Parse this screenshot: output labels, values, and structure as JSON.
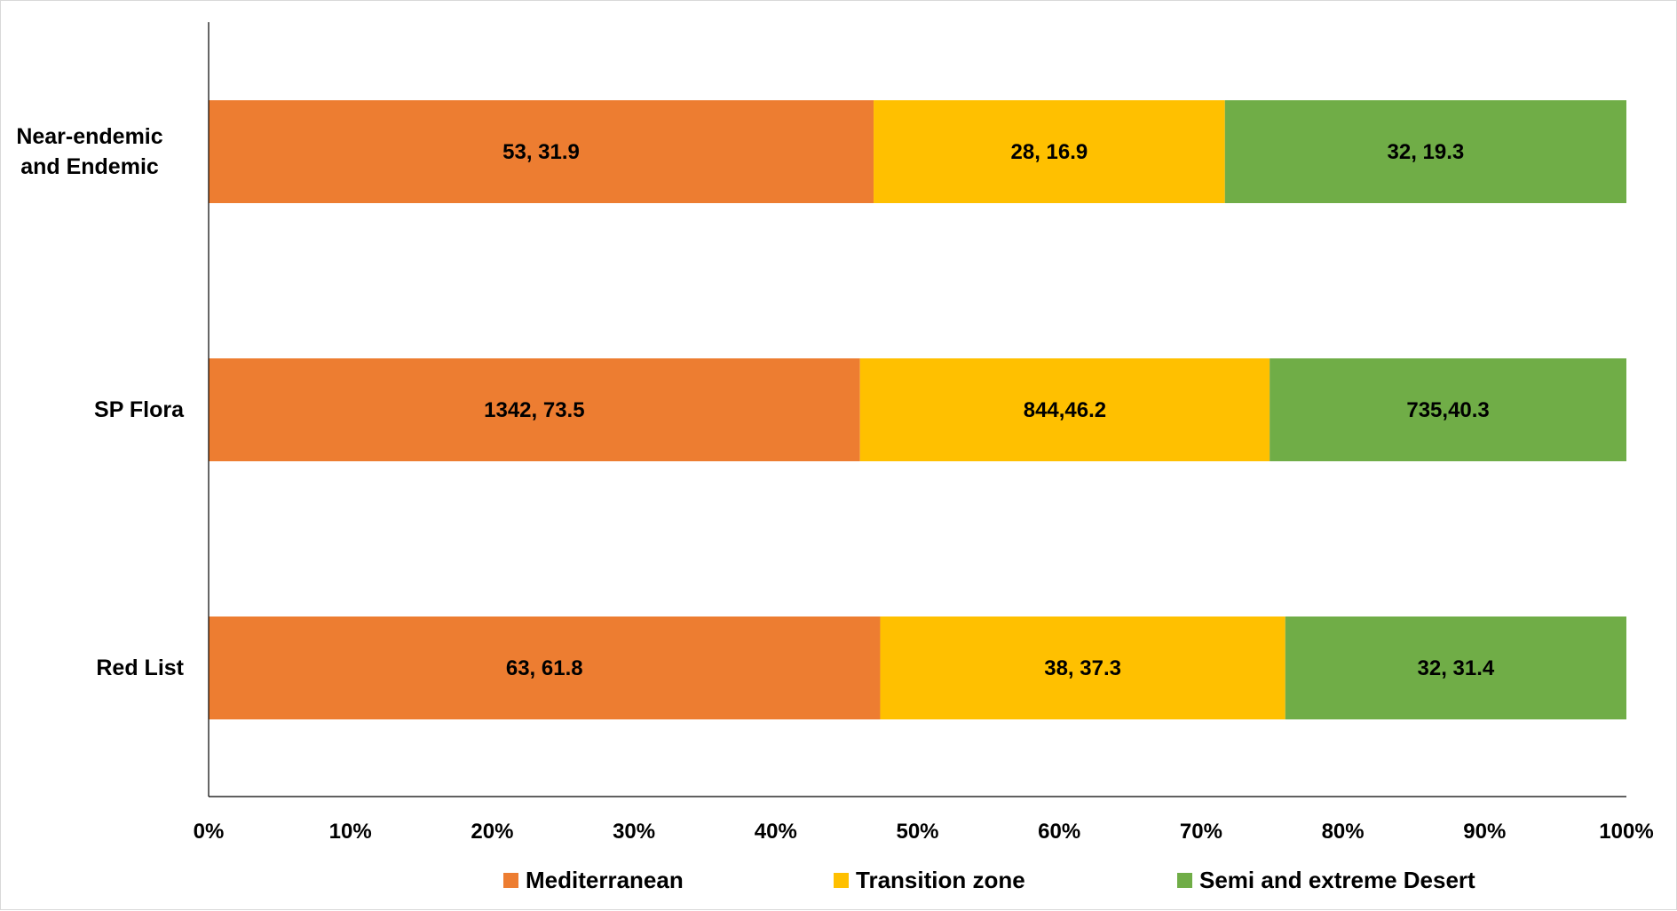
{
  "chart_data": {
    "type": "bar",
    "orientation": "horizontal",
    "stacking": "100%",
    "categories": [
      "Near-endemic and Endemic",
      "SP Flora",
      "Red List"
    ],
    "category_label_lines": [
      [
        "Near-endemic",
        "and Endemic"
      ],
      [
        "SP Flora"
      ],
      [
        "Red List"
      ]
    ],
    "series": [
      {
        "name": "Mediterranean",
        "color": "#ed7d31",
        "values": [
          53,
          1342,
          63
        ],
        "labels": [
          "53, 31.9",
          "1342, 73.5",
          "63, 61.8"
        ]
      },
      {
        "name": "Transition zone",
        "color": "#ffc000",
        "values": [
          28,
          844,
          38
        ],
        "labels": [
          "28, 16.9",
          "844,46.2",
          "38, 37.3"
        ]
      },
      {
        "name": "Semi and extreme Desert",
        "color": "#70ad47",
        "values": [
          32,
          735,
          32
        ],
        "labels": [
          "32, 19.3",
          "735,40.3",
          "32, 31.4"
        ]
      }
    ],
    "x_ticks": [
      "0%",
      "10%",
      "20%",
      "30%",
      "40%",
      "50%",
      "60%",
      "70%",
      "80%",
      "90%",
      "100%"
    ],
    "xlim": [
      0,
      100
    ],
    "title": "",
    "xlabel": "",
    "ylabel": "",
    "grid": false,
    "legend_position": "bottom"
  }
}
